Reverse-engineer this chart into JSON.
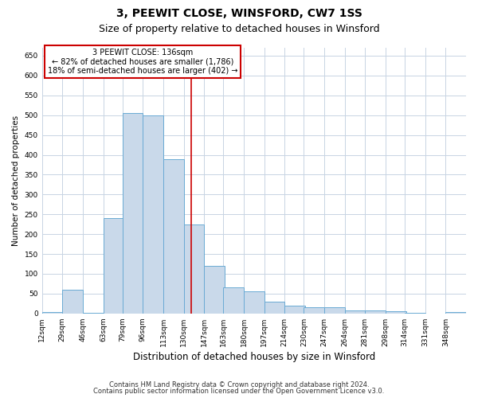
{
  "title": "3, PEEWIT CLOSE, WINSFORD, CW7 1SS",
  "subtitle": "Size of property relative to detached houses in Winsford",
  "xlabel": "Distribution of detached houses by size in Winsford",
  "ylabel": "Number of detached properties",
  "footnote1": "Contains HM Land Registry data © Crown copyright and database right 2024.",
  "footnote2": "Contains public sector information licensed under the Open Government Licence v3.0.",
  "bar_color": "#c9d9ea",
  "bar_edge_color": "#6aaad4",
  "grid_color": "#c8d4e3",
  "annotation_box_color": "#cc0000",
  "vline_color": "#cc0000",
  "annotation_text_line1": "3 PEEWIT CLOSE: 136sqm",
  "annotation_text_line2": "← 82% of detached houses are smaller (1,786)",
  "annotation_text_line3": "18% of semi-detached houses are larger (402) →",
  "bin_labels": [
    "12sqm",
    "29sqm",
    "46sqm",
    "63sqm",
    "79sqm",
    "96sqm",
    "113sqm",
    "130sqm",
    "147sqm",
    "163sqm",
    "180sqm",
    "197sqm",
    "214sqm",
    "230sqm",
    "247sqm",
    "264sqm",
    "281sqm",
    "298sqm",
    "314sqm",
    "331sqm",
    "348sqm"
  ],
  "bin_edges": [
    12,
    29,
    46,
    63,
    79,
    96,
    113,
    130,
    147,
    163,
    180,
    197,
    214,
    230,
    247,
    264,
    281,
    298,
    314,
    331,
    348,
    365
  ],
  "bar_heights": [
    3,
    60,
    2,
    240,
    505,
    500,
    390,
    225,
    120,
    65,
    55,
    30,
    20,
    15,
    15,
    8,
    8,
    5,
    2,
    0,
    3
  ],
  "vline_x": 136,
  "ylim": [
    0,
    670
  ],
  "yticks": [
    0,
    50,
    100,
    150,
    200,
    250,
    300,
    350,
    400,
    450,
    500,
    550,
    600,
    650
  ],
  "figsize": [
    6.0,
    5.0
  ],
  "dpi": 100,
  "title_fontsize": 10,
  "subtitle_fontsize": 9,
  "xlabel_fontsize": 8.5,
  "ylabel_fontsize": 7.5,
  "tick_fontsize": 6.5,
  "footnote_fontsize": 6
}
